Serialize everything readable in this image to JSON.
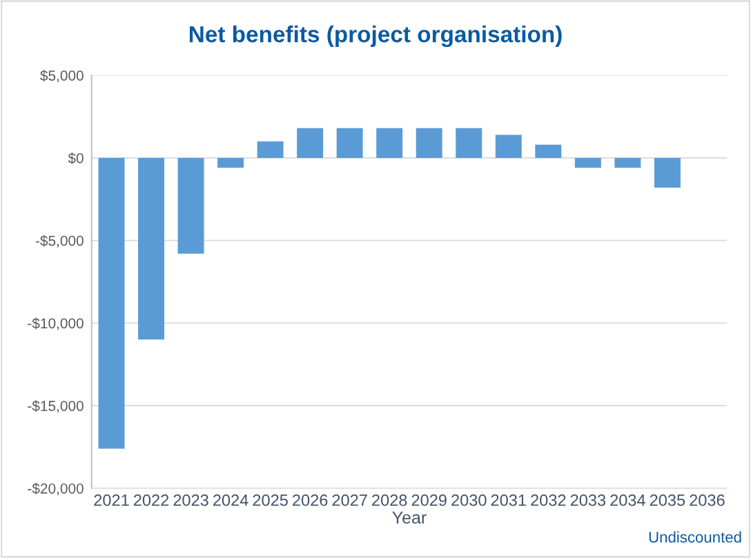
{
  "chart_data": {
    "type": "bar",
    "title": "Net benefits (project organisation)",
    "xlabel": "Year",
    "categories": [
      "2021",
      "2022",
      "2023",
      "2024",
      "2025",
      "2026",
      "2027",
      "2028",
      "2029",
      "2030",
      "2031",
      "2032",
      "2033",
      "2034",
      "2035",
      "2036"
    ],
    "values": [
      -17600,
      -11000,
      -5800,
      -600,
      1000,
      1800,
      1800,
      1800,
      1800,
      1800,
      1400,
      800,
      -600,
      -600,
      -1800,
      0
    ],
    "color": "#5b9bd5",
    "ylim": [
      -20000,
      5000
    ],
    "yticks": [
      {
        "value": -20000,
        "label": "-$20,000"
      },
      {
        "value": -15000,
        "label": "-$15,000"
      },
      {
        "value": -10000,
        "label": "-$10,000"
      },
      {
        "value": -5000,
        "label": "-$5,000"
      },
      {
        "value": 0,
        "label": "$0"
      },
      {
        "value": 5000,
        "label": "$5,000"
      }
    ],
    "grid": "y",
    "annotations": [
      "Undiscounted"
    ]
  }
}
